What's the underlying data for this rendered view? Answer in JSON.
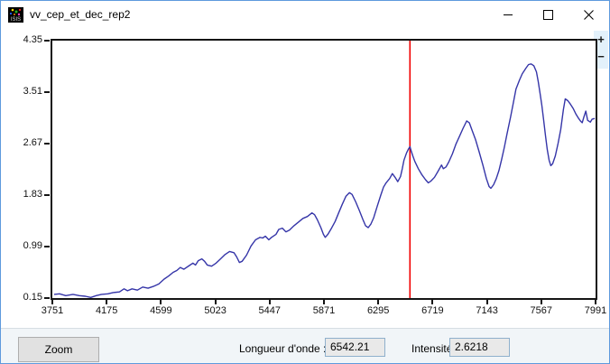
{
  "window": {
    "title": "vv_cep_et_dec_rep2"
  },
  "zoom_controls": {
    "plus": "+",
    "minus": "−"
  },
  "footer": {
    "zoom_button_label": "Zoom",
    "wavelength_label": "Longueur d'onde :",
    "wavelength_value": "6542.21",
    "intensity_label": "Intensité :",
    "intensity_value": "2.6218"
  },
  "colors": {
    "curve": "#3535a8",
    "cursor": "#f20000",
    "axis": "#151515",
    "window_border": "#5e9add",
    "zoom_strip_bg": "#e3f1fb",
    "footer_bg": "#f1f5f8"
  },
  "chart_data": {
    "type": "line",
    "title": "",
    "xlabel": "Longueur d'onde",
    "ylabel": "Intensité",
    "xlim": [
      3751,
      7991
    ],
    "ylim": [
      0.15,
      4.35
    ],
    "x_ticks": [
      "3751",
      "4175",
      "4599",
      "5023",
      "5447",
      "5871",
      "6295",
      "6719",
      "7143",
      "7567",
      "7991"
    ],
    "y_ticks": [
      "0.15",
      "0.99",
      "1.83",
      "2.67",
      "3.51",
      "4.35"
    ],
    "grid": false,
    "legend": "none",
    "cursor": {
      "x": 6542.21,
      "intensity_at_cursor": 2.6218,
      "color": "#f20000"
    },
    "series": [
      {
        "name": "spectrum",
        "color": "#3535a8",
        "points": [
          [
            3765,
            0.21
          ],
          [
            3807,
            0.22
          ],
          [
            3856,
            0.19
          ],
          [
            3912,
            0.21
          ],
          [
            3961,
            0.19
          ],
          [
            4009,
            0.18
          ],
          [
            4051,
            0.16
          ],
          [
            4093,
            0.19
          ],
          [
            4135,
            0.21
          ],
          [
            4184,
            0.22
          ],
          [
            4226,
            0.24
          ],
          [
            4275,
            0.25
          ],
          [
            4310,
            0.3
          ],
          [
            4338,
            0.27
          ],
          [
            4373,
            0.3
          ],
          [
            4415,
            0.28
          ],
          [
            4456,
            0.33
          ],
          [
            4498,
            0.31
          ],
          [
            4540,
            0.34
          ],
          [
            4582,
            0.38
          ],
          [
            4624,
            0.46
          ],
          [
            4659,
            0.51
          ],
          [
            4694,
            0.57
          ],
          [
            4722,
            0.6
          ],
          [
            4750,
            0.65
          ],
          [
            4778,
            0.62
          ],
          [
            4820,
            0.68
          ],
          [
            4848,
            0.72
          ],
          [
            4869,
            0.69
          ],
          [
            4890,
            0.76
          ],
          [
            4918,
            0.79
          ],
          [
            4939,
            0.75
          ],
          [
            4960,
            0.69
          ],
          [
            4994,
            0.67
          ],
          [
            5029,
            0.72
          ],
          [
            5064,
            0.79
          ],
          [
            5099,
            0.86
          ],
          [
            5134,
            0.91
          ],
          [
            5169,
            0.89
          ],
          [
            5190,
            0.82
          ],
          [
            5211,
            0.73
          ],
          [
            5232,
            0.75
          ],
          [
            5267,
            0.85
          ],
          [
            5302,
            1.0
          ],
          [
            5337,
            1.1
          ],
          [
            5372,
            1.14
          ],
          [
            5393,
            1.13
          ],
          [
            5414,
            1.16
          ],
          [
            5441,
            1.1
          ],
          [
            5462,
            1.14
          ],
          [
            5497,
            1.19
          ],
          [
            5518,
            1.27
          ],
          [
            5546,
            1.29
          ],
          [
            5574,
            1.23
          ],
          [
            5602,
            1.26
          ],
          [
            5637,
            1.33
          ],
          [
            5672,
            1.39
          ],
          [
            5707,
            1.45
          ],
          [
            5742,
            1.48
          ],
          [
            5777,
            1.54
          ],
          [
            5798,
            1.51
          ],
          [
            5819,
            1.43
          ],
          [
            5847,
            1.3
          ],
          [
            5867,
            1.19
          ],
          [
            5881,
            1.14
          ],
          [
            5902,
            1.19
          ],
          [
            5930,
            1.29
          ],
          [
            5958,
            1.4
          ],
          [
            5986,
            1.54
          ],
          [
            6014,
            1.68
          ],
          [
            6042,
            1.81
          ],
          [
            6070,
            1.87
          ],
          [
            6091,
            1.84
          ],
          [
            6119,
            1.72
          ],
          [
            6147,
            1.58
          ],
          [
            6175,
            1.43
          ],
          [
            6196,
            1.33
          ],
          [
            6217,
            1.3
          ],
          [
            6238,
            1.36
          ],
          [
            6259,
            1.46
          ],
          [
            6287,
            1.65
          ],
          [
            6315,
            1.83
          ],
          [
            6336,
            1.96
          ],
          [
            6356,
            2.03
          ],
          [
            6384,
            2.1
          ],
          [
            6405,
            2.18
          ],
          [
            6426,
            2.12
          ],
          [
            6447,
            2.05
          ],
          [
            6468,
            2.13
          ],
          [
            6482,
            2.26
          ],
          [
            6496,
            2.4
          ],
          [
            6516,
            2.52
          ],
          [
            6530,
            2.58
          ],
          [
            6542,
            2.62
          ],
          [
            6552,
            2.55
          ],
          [
            6565,
            2.47
          ],
          [
            6580,
            2.38
          ],
          [
            6608,
            2.26
          ],
          [
            6636,
            2.16
          ],
          [
            6664,
            2.08
          ],
          [
            6685,
            2.03
          ],
          [
            6706,
            2.06
          ],
          [
            6734,
            2.12
          ],
          [
            6762,
            2.22
          ],
          [
            6789,
            2.32
          ],
          [
            6803,
            2.26
          ],
          [
            6824,
            2.29
          ],
          [
            6845,
            2.37
          ],
          [
            6873,
            2.5
          ],
          [
            6901,
            2.66
          ],
          [
            6929,
            2.79
          ],
          [
            6957,
            2.92
          ],
          [
            6985,
            3.04
          ],
          [
            7006,
            3.01
          ],
          [
            7027,
            2.89
          ],
          [
            7055,
            2.73
          ],
          [
            7083,
            2.53
          ],
          [
            7111,
            2.32
          ],
          [
            7139,
            2.1
          ],
          [
            7160,
            1.97
          ],
          [
            7174,
            1.94
          ],
          [
            7195,
            2.0
          ],
          [
            7216,
            2.1
          ],
          [
            7237,
            2.23
          ],
          [
            7258,
            2.41
          ],
          [
            7279,
            2.61
          ],
          [
            7300,
            2.83
          ],
          [
            7328,
            3.11
          ],
          [
            7349,
            3.33
          ],
          [
            7370,
            3.56
          ],
          [
            7398,
            3.71
          ],
          [
            7419,
            3.81
          ],
          [
            7447,
            3.9
          ],
          [
            7468,
            3.96
          ],
          [
            7488,
            3.97
          ],
          [
            7509,
            3.94
          ],
          [
            7530,
            3.84
          ],
          [
            7544,
            3.68
          ],
          [
            7558,
            3.49
          ],
          [
            7572,
            3.29
          ],
          [
            7586,
            3.05
          ],
          [
            7600,
            2.8
          ],
          [
            7614,
            2.57
          ],
          [
            7628,
            2.4
          ],
          [
            7642,
            2.31
          ],
          [
            7656,
            2.34
          ],
          [
            7677,
            2.47
          ],
          [
            7698,
            2.67
          ],
          [
            7719,
            2.9
          ],
          [
            7740,
            3.23
          ],
          [
            7754,
            3.4
          ],
          [
            7775,
            3.37
          ],
          [
            7796,
            3.31
          ],
          [
            7817,
            3.24
          ],
          [
            7838,
            3.15
          ],
          [
            7859,
            3.08
          ],
          [
            7873,
            3.04
          ],
          [
            7887,
            3.01
          ],
          [
            7901,
            3.11
          ],
          [
            7915,
            3.2
          ],
          [
            7929,
            3.05
          ],
          [
            7950,
            3.02
          ],
          [
            7964,
            3.07
          ],
          [
            7985,
            3.08
          ]
        ]
      }
    ]
  }
}
